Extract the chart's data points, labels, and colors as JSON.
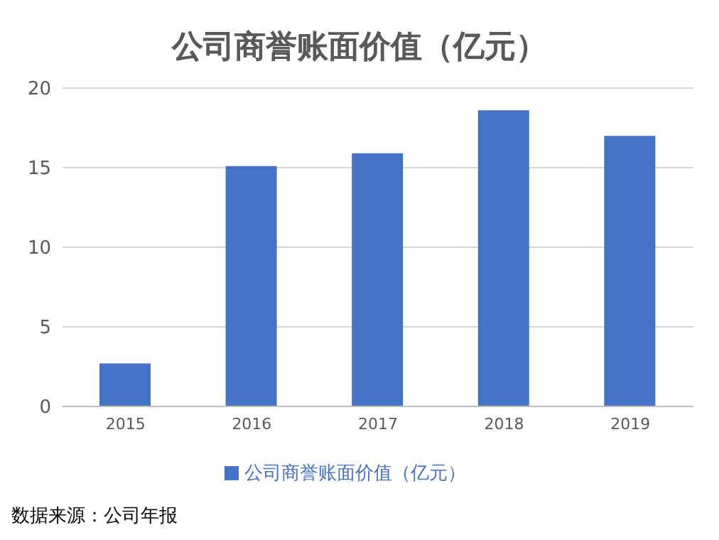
{
  "chart_data": {
    "type": "bar",
    "title": "公司商誉账面价值（亿元）",
    "categories": [
      "2015",
      "2016",
      "2017",
      "2018",
      "2019"
    ],
    "series": [
      {
        "name": "公司商誉账面价值（亿元）",
        "color": "#4472c4",
        "values": [
          2.7,
          15.1,
          15.9,
          18.6,
          17.0
        ]
      }
    ],
    "ylim": [
      0,
      20
    ],
    "yticks": [
      0,
      5,
      10,
      15,
      20
    ],
    "grid": "y",
    "legend": "bottom",
    "annotations": [
      "数据来源：公司年报"
    ]
  }
}
